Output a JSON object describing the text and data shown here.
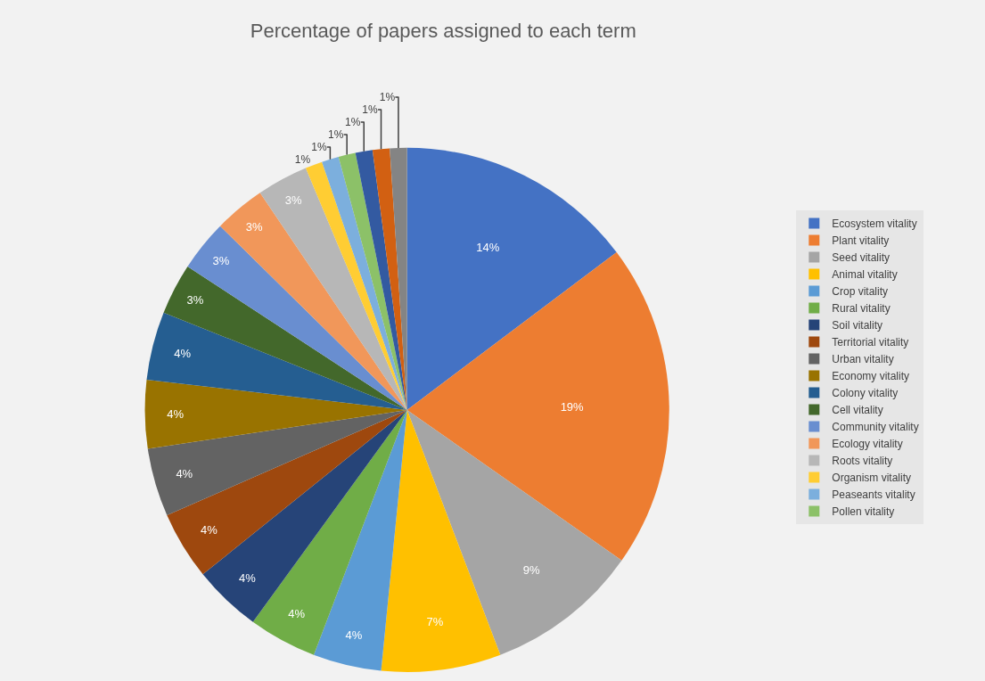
{
  "chart_data": {
    "type": "pie",
    "title": "Percentage of papers assigned to each term",
    "categories": [
      "Ecosystem vitality",
      "Plant vitality",
      "Seed vitality",
      "Animal vitality",
      "Crop vitality",
      "Rural vitality",
      "Soil vitality",
      "Territorial vitality",
      "Urban vitality",
      "Economy vitality",
      "Colony vitality",
      "Cell vitality",
      "Community vitality",
      "Ecology vitality",
      "Roots vitality",
      "Organism vitality",
      "Peaseants vitality",
      "Pollen vitality",
      null,
      null,
      null
    ],
    "values": [
      14,
      19,
      9,
      7,
      4,
      4,
      4,
      4,
      4,
      4,
      4,
      3,
      3,
      3,
      3,
      1,
      1,
      1,
      1,
      1,
      1
    ],
    "value_labels": [
      "14%",
      "19%",
      "9%",
      "7%",
      "4%",
      "4%",
      "4%",
      "4%",
      "4%",
      "4%",
      "4%",
      "3%",
      "3%",
      "3%",
      "3%",
      "1%",
      "1%",
      "1%",
      "1%",
      "1%",
      "1%"
    ],
    "colors": [
      "#4472c4",
      "#ed7d31",
      "#a5a5a5",
      "#ffc000",
      "#5b9bd5",
      "#70ad47",
      "#264478",
      "#9e480e",
      "#636363",
      "#997300",
      "#255e91",
      "#43682b",
      "#698ed0",
      "#f1975a",
      "#b7b7b7",
      "#ffcd33",
      "#7cafdd",
      "#8cc168",
      "#335aa1",
      "#d26012",
      "#848484"
    ],
    "legend": "right"
  }
}
